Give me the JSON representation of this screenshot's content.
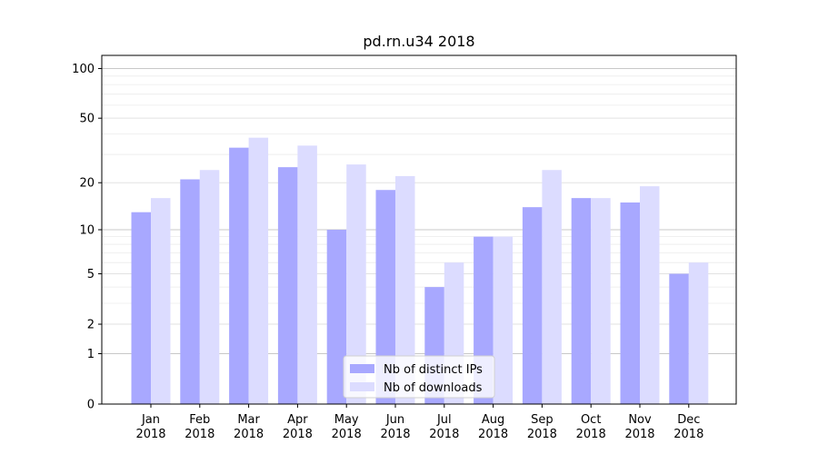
{
  "chart_data": {
    "type": "bar",
    "title": "pd.rn.u34 2018",
    "xlabel": "",
    "ylabel": "",
    "yscale": "log1p",
    "ylim": [
      0,
      120
    ],
    "yticks": [
      0,
      1,
      2,
      5,
      10,
      20,
      50,
      100
    ],
    "grid": "horizontal",
    "legend_position": "bottom-center",
    "categories": [
      [
        "Jan",
        "2018"
      ],
      [
        "Feb",
        "2018"
      ],
      [
        "Mar",
        "2018"
      ],
      [
        "Apr",
        "2018"
      ],
      [
        "May",
        "2018"
      ],
      [
        "Jun",
        "2018"
      ],
      [
        "Jul",
        "2018"
      ],
      [
        "Aug",
        "2018"
      ],
      [
        "Sep",
        "2018"
      ],
      [
        "Oct",
        "2018"
      ],
      [
        "Nov",
        "2018"
      ],
      [
        "Dec",
        "2018"
      ]
    ],
    "series": [
      {
        "name": "Nb of distinct IPs",
        "color": "#a8a8ff",
        "values": [
          13,
          21,
          33,
          25,
          10,
          18,
          4,
          9,
          14,
          16,
          15,
          5
        ]
      },
      {
        "name": "Nb of downloads",
        "color": "#dcdcff",
        "values": [
          16,
          24,
          38,
          34,
          26,
          22,
          6,
          9,
          24,
          16,
          19,
          6
        ]
      }
    ]
  }
}
